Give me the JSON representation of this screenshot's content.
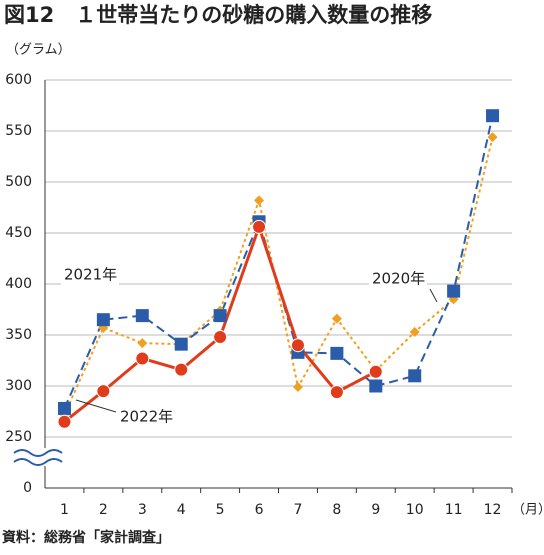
{
  "chart_data": {
    "type": "line",
    "title": "図12　１世帯当たりの砂糖の購入数量の推移",
    "y_label": "（グラム）",
    "x_label": "（月）",
    "source": "資料：総務省「家計調査」",
    "categories": [
      "1",
      "2",
      "3",
      "4",
      "5",
      "6",
      "7",
      "8",
      "9",
      "10",
      "11",
      "12"
    ],
    "series": [
      {
        "name": "2020年",
        "color": "#f0a020",
        "style": "dotted",
        "marker": "diamond",
        "values": [
          272,
          357,
          342,
          341,
          374,
          482,
          299,
          366,
          315,
          353,
          385,
          544
        ]
      },
      {
        "name": "2021年",
        "color": "#2a5caa",
        "style": "dashed",
        "marker": "square",
        "values": [
          278,
          365,
          369,
          341,
          369,
          461,
          333,
          332,
          300,
          310,
          393,
          565
        ]
      },
      {
        "name": "2022年",
        "color": "#e03c1c",
        "style": "solid",
        "marker": "circle",
        "values": [
          265,
          295,
          327,
          316,
          348,
          456,
          340,
          294,
          314,
          null,
          null,
          null
        ]
      }
    ],
    "ylim": [
      0,
      600
    ],
    "yticks": [
      0,
      250,
      300,
      350,
      400,
      450,
      500,
      550,
      600
    ],
    "broken_axis": true,
    "grid": true
  }
}
